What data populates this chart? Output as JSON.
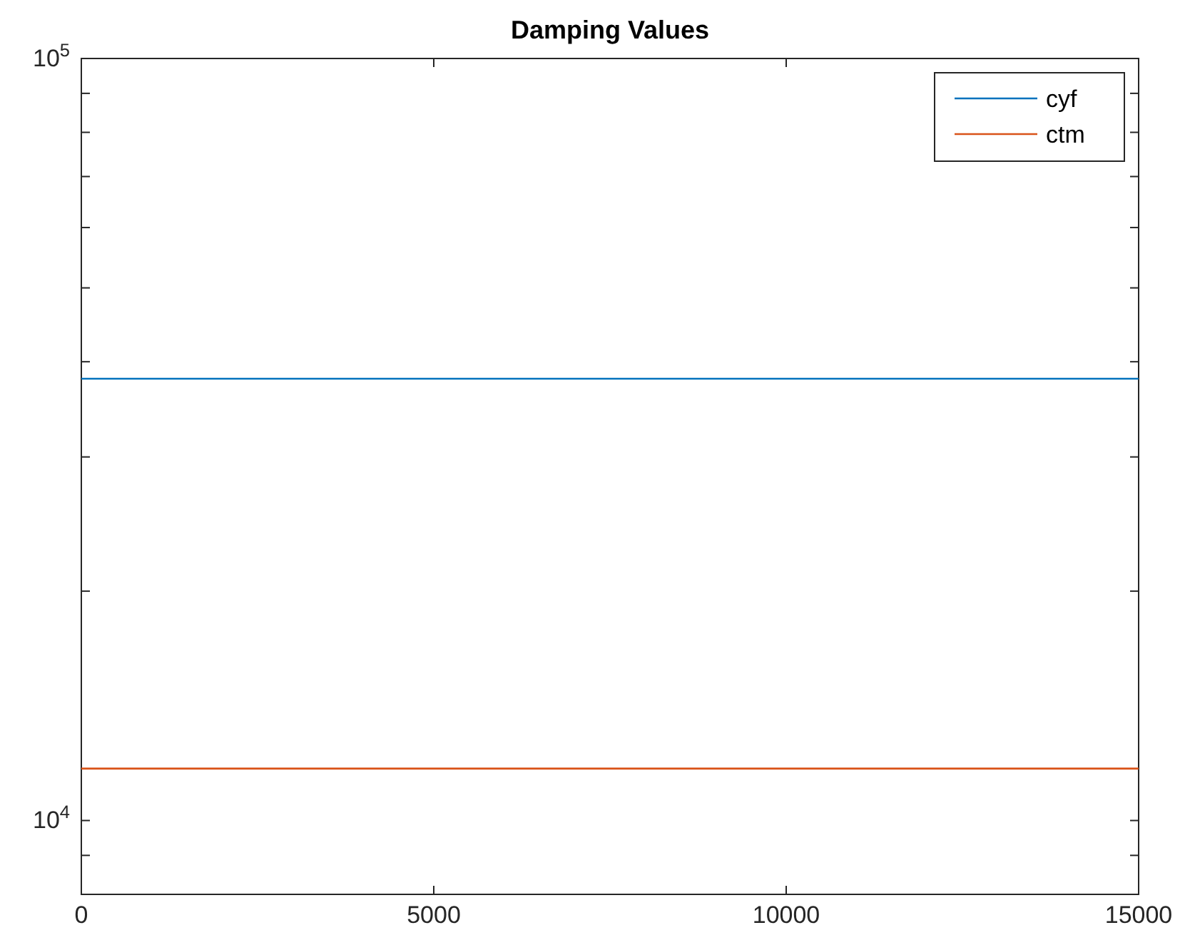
{
  "chart_data": {
    "type": "line",
    "title": "Damping Values",
    "x": [
      0,
      15000
    ],
    "series": [
      {
        "name": "cyf",
        "color": "#0072bd",
        "values": [
          38000,
          38000
        ]
      },
      {
        "name": "ctm",
        "color": "#d95319",
        "values": [
          11700,
          11700
        ]
      }
    ],
    "xlim": [
      0,
      15000
    ],
    "xticks": [
      0,
      5000,
      10000,
      15000
    ],
    "ylim": [
      8000,
      100000
    ],
    "yticks": [
      {
        "value": 8000,
        "label": null
      },
      {
        "value": 9000,
        "label": null
      },
      {
        "value": 10000,
        "label": "10$^{4}$"
      },
      {
        "value": 20000,
        "label": null
      },
      {
        "value": 30000,
        "label": null
      },
      {
        "value": 40000,
        "label": null
      },
      {
        "value": 50000,
        "label": null
      },
      {
        "value": 60000,
        "label": null
      },
      {
        "value": 70000,
        "label": null
      },
      {
        "value": 80000,
        "label": null
      },
      {
        "value": 90000,
        "label": null
      },
      {
        "value": 100000,
        "label": "10$^{5}$"
      }
    ],
    "log": true,
    "legend": "top right",
    "grid": false,
    "marker": "none",
    "line_style": "solid"
  }
}
